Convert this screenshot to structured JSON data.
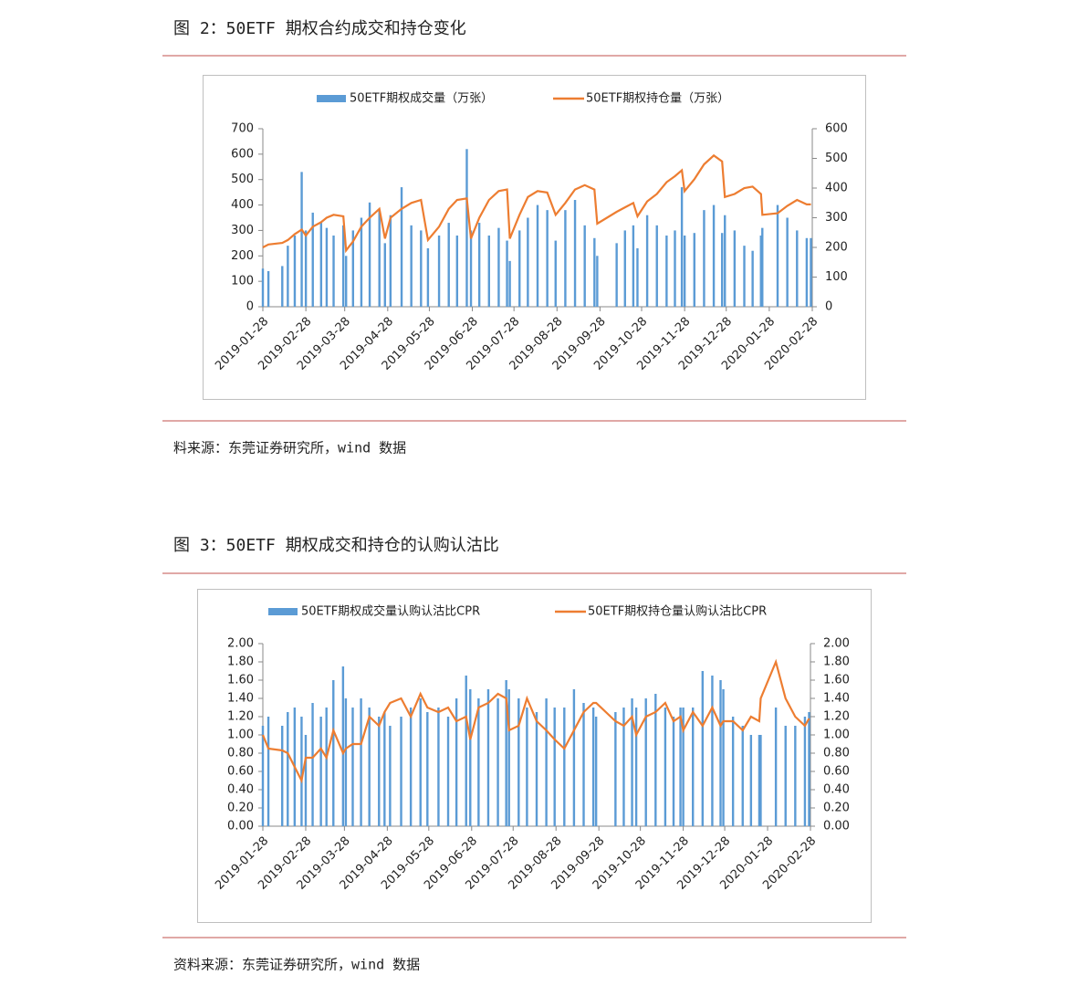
{
  "captions": [
    "图 2：50ETF 期权合约成交和持仓变化",
    "图 3：50ETF 期权成交和持仓的认购认沽比"
  ],
  "sources": [
    "料来源：东莞证券研究所，wind 数据",
    "资料来源：东莞证券研究所，wind 数据"
  ],
  "chart_data": [
    {
      "type": "bar-line",
      "x": [
        "2019-01-28",
        "2019-02-01",
        "2019-02-11",
        "2019-02-15",
        "2019-02-20",
        "2019-02-25",
        "2019-02-28",
        "2019-03-05",
        "2019-03-11",
        "2019-03-15",
        "2019-03-20",
        "2019-03-27",
        "2019-03-29",
        "2019-04-03",
        "2019-04-09",
        "2019-04-15",
        "2019-04-22",
        "2019-04-26",
        "2019-04-30",
        "2019-05-08",
        "2019-05-15",
        "2019-05-22",
        "2019-05-27",
        "2019-06-04",
        "2019-06-11",
        "2019-06-17",
        "2019-06-24",
        "2019-06-27",
        "2019-07-03",
        "2019-07-10",
        "2019-07-17",
        "2019-07-23",
        "2019-07-25",
        "2019-08-01",
        "2019-08-07",
        "2019-08-14",
        "2019-08-21",
        "2019-08-27",
        "2019-09-03",
        "2019-09-10",
        "2019-09-17",
        "2019-09-24",
        "2019-09-26",
        "2019-10-10",
        "2019-10-16",
        "2019-10-22",
        "2019-10-25",
        "2019-11-01",
        "2019-11-08",
        "2019-11-15",
        "2019-11-21",
        "2019-11-26",
        "2019-11-28",
        "2019-12-05",
        "2019-12-12",
        "2019-12-19",
        "2019-12-25",
        "2019-12-27",
        "2020-01-03",
        "2020-01-10",
        "2020-01-16",
        "2020-01-22",
        "2020-01-23",
        "2020-02-03",
        "2020-02-10",
        "2020-02-17",
        "2020-02-24",
        "2020-02-27"
      ],
      "series": [
        {
          "name": "50ETF期权成交量（万张）",
          "color": "#5b9bd5",
          "values": [
            150,
            140,
            160,
            240,
            280,
            530,
            300,
            370,
            330,
            310,
            280,
            320,
            200,
            300,
            350,
            410,
            380,
            250,
            360,
            470,
            320,
            300,
            230,
            280,
            330,
            280,
            620,
            300,
            330,
            280,
            310,
            260,
            180,
            300,
            350,
            400,
            380,
            260,
            380,
            420,
            320,
            270,
            200,
            250,
            300,
            320,
            230,
            360,
            320,
            280,
            300,
            470,
            280,
            290,
            380,
            400,
            290,
            360,
            300,
            240,
            220,
            280,
            310,
            400,
            350,
            300,
            270,
            270
          ]
        },
        {
          "name": "50ETF期权持仓量（万张）",
          "color": "#ed7d31",
          "axis": "y2",
          "values": [
            200,
            210,
            215,
            225,
            245,
            260,
            240,
            270,
            285,
            300,
            310,
            305,
            190,
            220,
            270,
            300,
            330,
            230,
            300,
            330,
            350,
            360,
            225,
            270,
            330,
            360,
            365,
            230,
            300,
            360,
            390,
            395,
            230,
            310,
            370,
            390,
            385,
            310,
            350,
            395,
            410,
            395,
            280,
            320,
            335,
            350,
            305,
            355,
            380,
            420,
            440,
            460,
            390,
            430,
            480,
            510,
            490,
            370,
            380,
            400,
            405,
            380,
            310,
            315,
            340,
            360,
            345,
            345
          ]
        }
      ],
      "xlim": [
        "2019-01-28",
        "2020-02-28"
      ],
      "xticks": [
        "2019-01-28",
        "2019-02-28",
        "2019-03-28",
        "2019-04-28",
        "2019-05-28",
        "2019-06-28",
        "2019-07-28",
        "2019-08-28",
        "2019-09-28",
        "2019-10-28",
        "2019-11-28",
        "2019-12-28",
        "2020-01-28",
        "2020-02-28"
      ],
      "ylim": [
        0,
        700
      ],
      "yticks": [
        0,
        100,
        200,
        300,
        400,
        500,
        600,
        700
      ],
      "y2lim": [
        0,
        600
      ],
      "y2ticks": [
        0,
        100,
        200,
        300,
        400,
        500,
        600
      ]
    },
    {
      "type": "bar-line",
      "x": [
        "2019-01-28",
        "2019-02-01",
        "2019-02-11",
        "2019-02-15",
        "2019-02-20",
        "2019-02-25",
        "2019-02-28",
        "2019-03-05",
        "2019-03-11",
        "2019-03-15",
        "2019-03-20",
        "2019-03-27",
        "2019-03-29",
        "2019-04-03",
        "2019-04-09",
        "2019-04-15",
        "2019-04-22",
        "2019-04-26",
        "2019-04-30",
        "2019-05-08",
        "2019-05-15",
        "2019-05-22",
        "2019-05-27",
        "2019-06-04",
        "2019-06-11",
        "2019-06-17",
        "2019-06-24",
        "2019-06-27",
        "2019-07-03",
        "2019-07-10",
        "2019-07-17",
        "2019-07-23",
        "2019-07-25",
        "2019-08-01",
        "2019-08-07",
        "2019-08-14",
        "2019-08-21",
        "2019-08-27",
        "2019-09-03",
        "2019-09-10",
        "2019-09-17",
        "2019-09-24",
        "2019-09-26",
        "2019-10-10",
        "2019-10-16",
        "2019-10-22",
        "2019-10-25",
        "2019-11-01",
        "2019-11-08",
        "2019-11-15",
        "2019-11-21",
        "2019-11-26",
        "2019-11-28",
        "2019-12-05",
        "2019-12-12",
        "2019-12-19",
        "2019-12-25",
        "2019-12-27",
        "2020-01-03",
        "2020-01-10",
        "2020-01-16",
        "2020-01-22",
        "2020-01-23",
        "2020-02-03",
        "2020-02-10",
        "2020-02-17",
        "2020-02-24",
        "2020-02-27"
      ],
      "series": [
        {
          "name": "50ETF期权成交量认购认沽比CPR",
          "color": "#5b9bd5",
          "values": [
            1.1,
            1.2,
            1.1,
            1.25,
            1.3,
            1.2,
            1.0,
            1.35,
            1.2,
            1.3,
            1.6,
            1.75,
            1.4,
            1.3,
            1.4,
            1.3,
            1.2,
            1.25,
            1.1,
            1.2,
            1.3,
            1.4,
            1.25,
            1.3,
            1.2,
            1.4,
            1.65,
            1.5,
            1.4,
            1.5,
            1.4,
            1.6,
            1.5,
            1.4,
            1.3,
            1.25,
            1.4,
            1.3,
            1.3,
            1.5,
            1.35,
            1.3,
            1.2,
            1.25,
            1.3,
            1.4,
            1.3,
            1.4,
            1.45,
            1.3,
            1.2,
            1.3,
            1.3,
            1.3,
            1.7,
            1.65,
            1.6,
            1.5,
            1.2,
            1.1,
            1.0,
            1.0,
            1.0,
            1.3,
            1.1,
            1.1,
            1.2,
            1.25
          ]
        },
        {
          "name": "50ETF期权持仓量认购认沽比CPR",
          "color": "#ed7d31",
          "axis": "y2",
          "values": [
            1.0,
            0.85,
            0.83,
            0.8,
            0.65,
            0.5,
            0.75,
            0.75,
            0.85,
            0.75,
            1.05,
            0.8,
            0.85,
            0.9,
            0.9,
            1.2,
            1.1,
            1.25,
            1.35,
            1.4,
            1.2,
            1.45,
            1.3,
            1.25,
            1.3,
            1.15,
            1.2,
            0.95,
            1.3,
            1.35,
            1.45,
            1.4,
            1.05,
            1.1,
            1.4,
            1.15,
            1.05,
            0.95,
            0.85,
            1.05,
            1.25,
            1.35,
            1.35,
            1.15,
            1.1,
            1.2,
            1.0,
            1.2,
            1.25,
            1.35,
            1.15,
            1.2,
            1.05,
            1.25,
            1.1,
            1.3,
            1.1,
            1.15,
            1.15,
            1.05,
            1.2,
            1.15,
            1.4,
            1.8,
            1.4,
            1.2,
            1.1,
            1.18
          ]
        }
      ],
      "xlim": [
        "2019-01-28",
        "2020-02-28"
      ],
      "xticks": [
        "2019-01-28",
        "2019-02-28",
        "2019-03-28",
        "2019-04-28",
        "2019-05-28",
        "2019-06-28",
        "2019-07-28",
        "2019-08-28",
        "2019-09-28",
        "2019-10-28",
        "2019-11-28",
        "2019-12-28",
        "2020-01-28",
        "2020-02-28"
      ],
      "ylim": [
        0,
        2
      ],
      "yticks": [
        {
          "value": 0,
          "label": "0.00"
        },
        {
          "value": 0.2,
          "label": "0.20"
        },
        {
          "value": 0.4,
          "label": "0.40"
        },
        {
          "value": 0.6,
          "label": "0.60"
        },
        {
          "value": 0.8,
          "label": "0.80"
        },
        {
          "value": 1,
          "label": "1.00"
        },
        {
          "value": 1.2,
          "label": "1.20"
        },
        {
          "value": 1.4,
          "label": "1.40"
        },
        {
          "value": 1.6,
          "label": "1.60"
        },
        {
          "value": 1.8,
          "label": "1.80"
        },
        {
          "value": 2,
          "label": "2.00"
        }
      ],
      "y2lim": [
        0,
        2
      ],
      "y2ticks": [
        {
          "value": 0,
          "label": "0.00"
        },
        {
          "value": 0.2,
          "label": "0.20"
        },
        {
          "value": 0.4,
          "label": "0.40"
        },
        {
          "value": 0.6,
          "label": "0.60"
        },
        {
          "value": 0.8,
          "label": "0.80"
        },
        {
          "value": 1,
          "label": "1.00"
        },
        {
          "value": 1.2,
          "label": "1.20"
        },
        {
          "value": 1.4,
          "label": "1.40"
        },
        {
          "value": 1.6,
          "label": "1.60"
        },
        {
          "value": 1.8,
          "label": "1.80"
        },
        {
          "value": 2,
          "label": "2.00"
        }
      ]
    }
  ]
}
